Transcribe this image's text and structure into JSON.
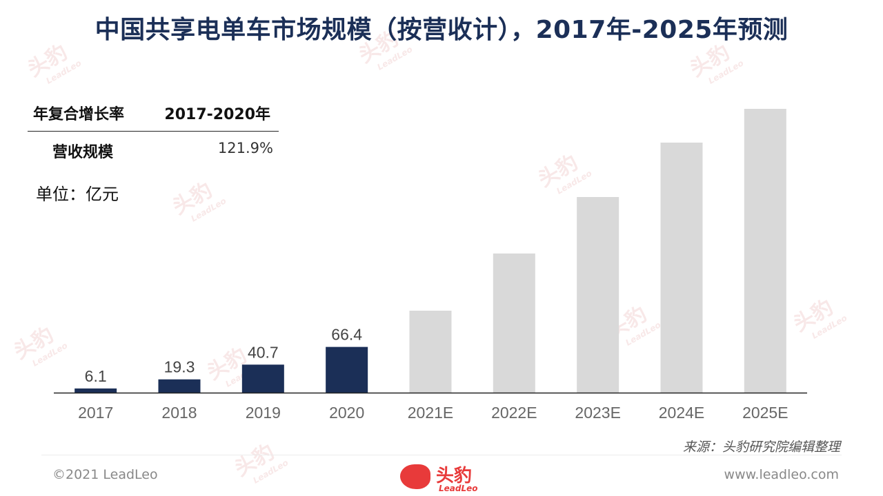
{
  "title": "中国共享电单车市场规模（按营收计），2017年-2025年预测",
  "cagr": {
    "header_label": "年复合增长率",
    "header_period": "2017-2020年",
    "row_label": "营收规模",
    "row_value": "121.9%"
  },
  "unit": "单位：亿元",
  "source": "来源：头豹研究院编辑整理",
  "footer": {
    "copyright": "©2021 LeadLeo",
    "website": "www.leadleo.com",
    "logo_cn": "头豹",
    "logo_en": "LeadLeo"
  },
  "watermark": {
    "cn": "头豹",
    "en": "LeadLeo"
  },
  "colors": {
    "actual": "#1b2f57",
    "forecast": "#d9d9d9",
    "title": "#1b2f57",
    "brand": "#e83a3a"
  },
  "chart_data": {
    "type": "bar",
    "categories": [
      "2017",
      "2018",
      "2019",
      "2020",
      "2021E",
      "2022E",
      "2023E",
      "2024E",
      "2025E"
    ],
    "values": [
      6.1,
      19.3,
      40.7,
      66.4,
      119,
      202,
      284,
      363,
      412
    ],
    "labels": [
      "6.1",
      "19.3",
      "40.7",
      "66.4",
      null,
      null,
      null,
      null,
      null
    ],
    "forecast": [
      false,
      false,
      false,
      false,
      true,
      true,
      true,
      true,
      true
    ],
    "ylim": [
      0,
      420
    ]
  }
}
